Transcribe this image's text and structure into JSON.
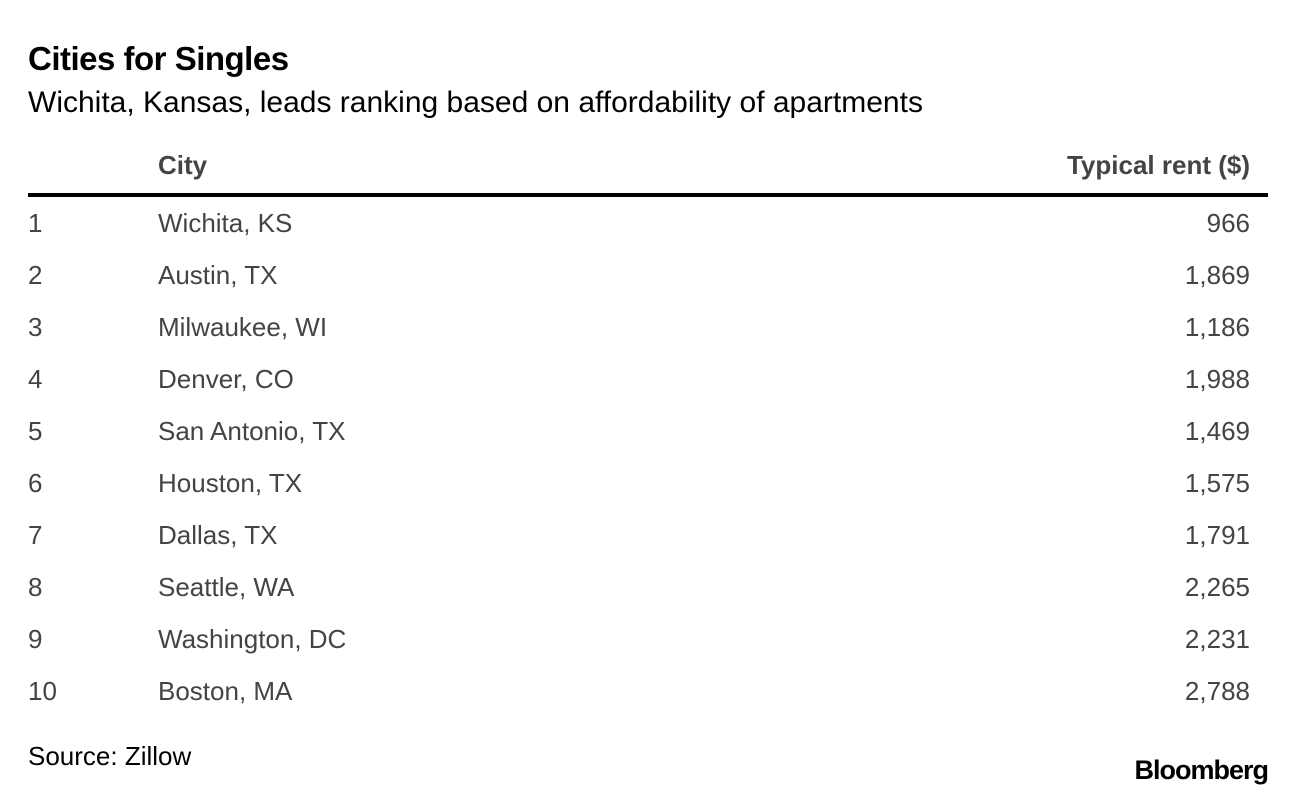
{
  "chart_data": {
    "type": "table",
    "title": "Cities for Singles",
    "subtitle": "Wichita, Kansas, leads ranking based on affordability of apartments",
    "columns": [
      "",
      "City",
      "Typical rent ($)"
    ],
    "rows": [
      {
        "rank": "1",
        "city": "Wichita, KS",
        "rent": "966"
      },
      {
        "rank": "2",
        "city": "Austin, TX",
        "rent": "1,869"
      },
      {
        "rank": "3",
        "city": "Milwaukee, WI",
        "rent": "1,186"
      },
      {
        "rank": "4",
        "city": "Denver, CO",
        "rent": "1,988"
      },
      {
        "rank": "5",
        "city": "San Antonio, TX",
        "rent": "1,469"
      },
      {
        "rank": "6",
        "city": "Houston, TX",
        "rent": "1,575"
      },
      {
        "rank": "7",
        "city": "Dallas, TX",
        "rent": "1,791"
      },
      {
        "rank": "8",
        "city": "Seattle, WA",
        "rent": "2,265"
      },
      {
        "rank": "9",
        "city": "Washington, DC",
        "rent": "2,231"
      },
      {
        "rank": "10",
        "city": "Boston, MA",
        "rent": "2,788"
      }
    ],
    "source": "Source: Zillow",
    "logo": "Bloomberg"
  }
}
